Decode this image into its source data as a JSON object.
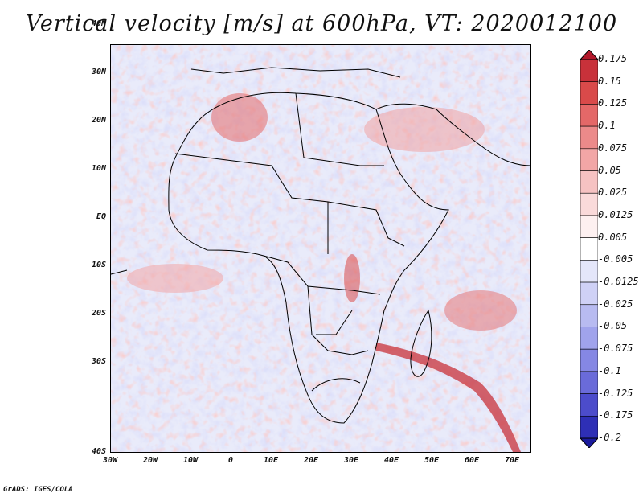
{
  "title": "Vertical velocity [m/s] at 600hPa, VT: 2020012100",
  "footer": "GrADS: IGES/COLA",
  "map": {
    "lat_labels": [
      "40N",
      "30N",
      "20N",
      "10N",
      "EQ",
      "10S",
      "20S",
      "30S",
      "40S"
    ],
    "lon_labels": [
      "30W",
      "20W",
      "10W",
      "0",
      "10E",
      "20E",
      "30E",
      "40E",
      "50E",
      "60E",
      "70E"
    ]
  },
  "colorbar": {
    "labels": [
      "0.175",
      "0.15",
      "0.125",
      "0.1",
      "0.075",
      "0.05",
      "0.025",
      "0.0125",
      "0.005",
      "-0.005",
      "-0.0125",
      "-0.025",
      "-0.05",
      "-0.075",
      "-0.1",
      "-0.125",
      "-0.175",
      "-0.2"
    ],
    "colors": [
      "#b2182b",
      "#c8313a",
      "#d94a4a",
      "#e46868",
      "#ec8a8a",
      "#f2a6a6",
      "#f6c2c2",
      "#fadada",
      "#fdf0f0",
      "#ffffff",
      "#e4e6fa",
      "#cfd1f6",
      "#b8bbf1",
      "#a0a3ec",
      "#8587e4",
      "#6a6bd9",
      "#4c4ccb",
      "#2e2fb6",
      "#1a1a9c"
    ]
  }
}
